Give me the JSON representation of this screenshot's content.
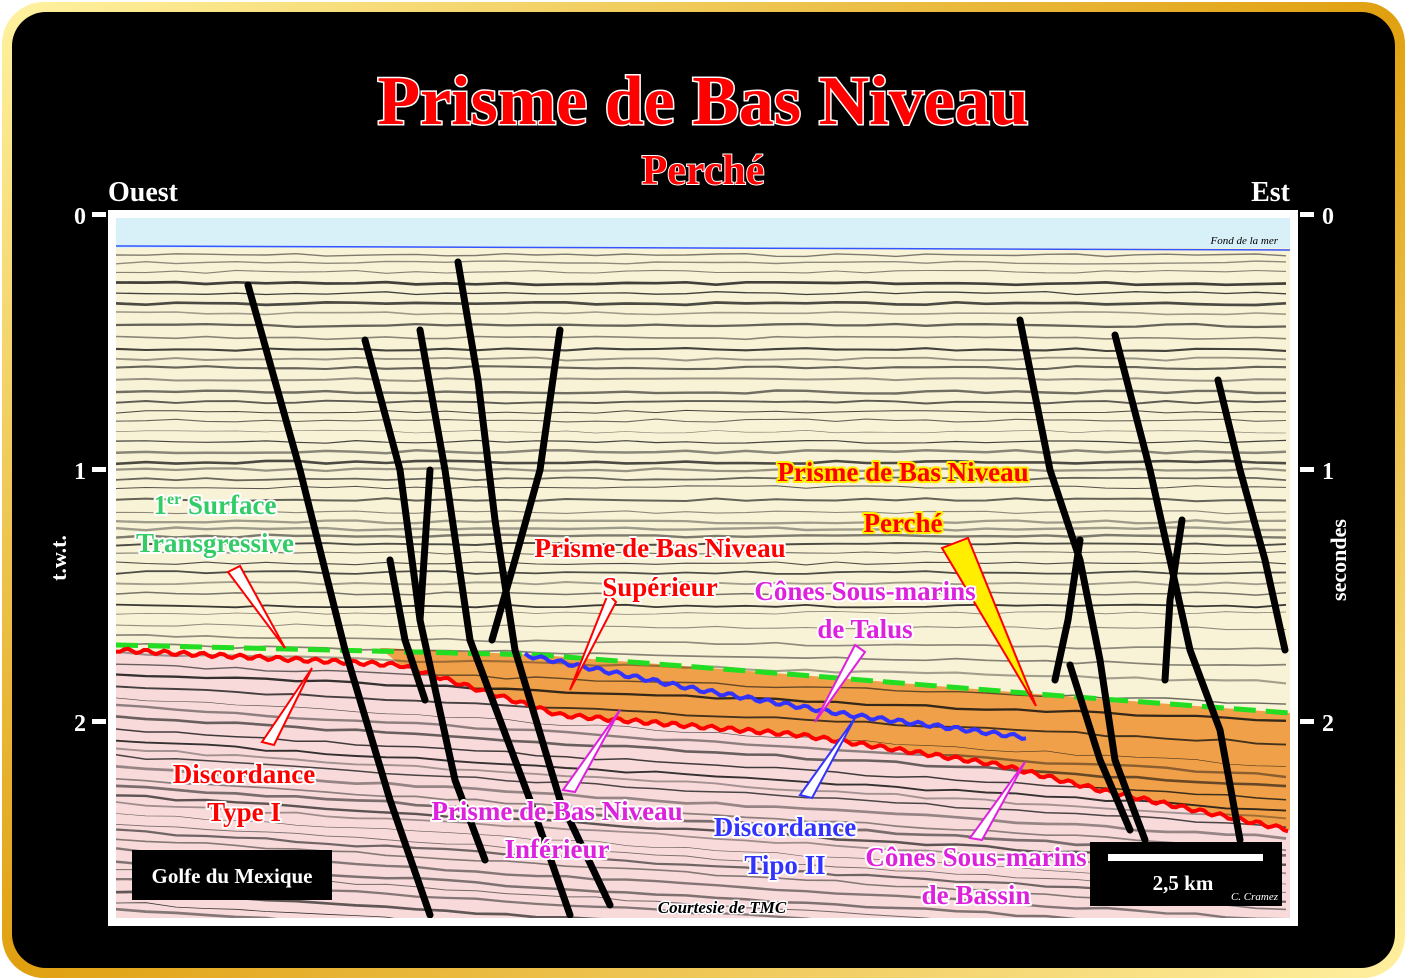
{
  "title": "Prisme de Bas Niveau",
  "subtitle": "Perché",
  "west_label": "Ouest",
  "east_label": "Est",
  "left_axis": {
    "label": "t.w.t.",
    "ticks": [
      "0",
      "1",
      "2"
    ]
  },
  "right_axis": {
    "label": "secondes",
    "ticks": [
      "0",
      "1",
      "2"
    ]
  },
  "seafloor_label": "Fond de la mer",
  "labels": {
    "surface_1": "1er Surface",
    "surface_1_sup": "er",
    "surface_1_num": "1",
    "surface_1_rest": " Surface",
    "surface_2": "Transgressive",
    "disc1_1": "Discordance",
    "disc1_2": "Type I",
    "pbn_sup_1": "Prisme de Bas  Niveau",
    "pbn_sup_2": "Supérieur",
    "pbn_inf_1": "Prisme de Bas Niveau",
    "pbn_inf_2": "Inférieur",
    "pbn_perche_1": "Prisme de Bas Niveau",
    "pbn_perche_2": "Perché",
    "cones_talus_1": "Cônes Sous-marins",
    "cones_talus_2": "de  Talus",
    "disc2_1": "Discordance",
    "disc2_2": "Tipo II",
    "cones_bassin_1": "Cônes Sous-marins",
    "cones_bassin_2": "de  Bassin"
  },
  "location_box": "Golfe du Mexique",
  "scale_bar": "2,5 km",
  "author": "C. Cramez",
  "courtesy": "Courtesie de TMC",
  "colors": {
    "frame": "#f0c020",
    "background": "#000000",
    "title": "#ff0000",
    "type1": "#ff0000",
    "type2": "#3333ff",
    "transgressive": "#22cc22",
    "lowstand_wedge": "#f0a040",
    "sea": "#d8f0f8"
  }
}
